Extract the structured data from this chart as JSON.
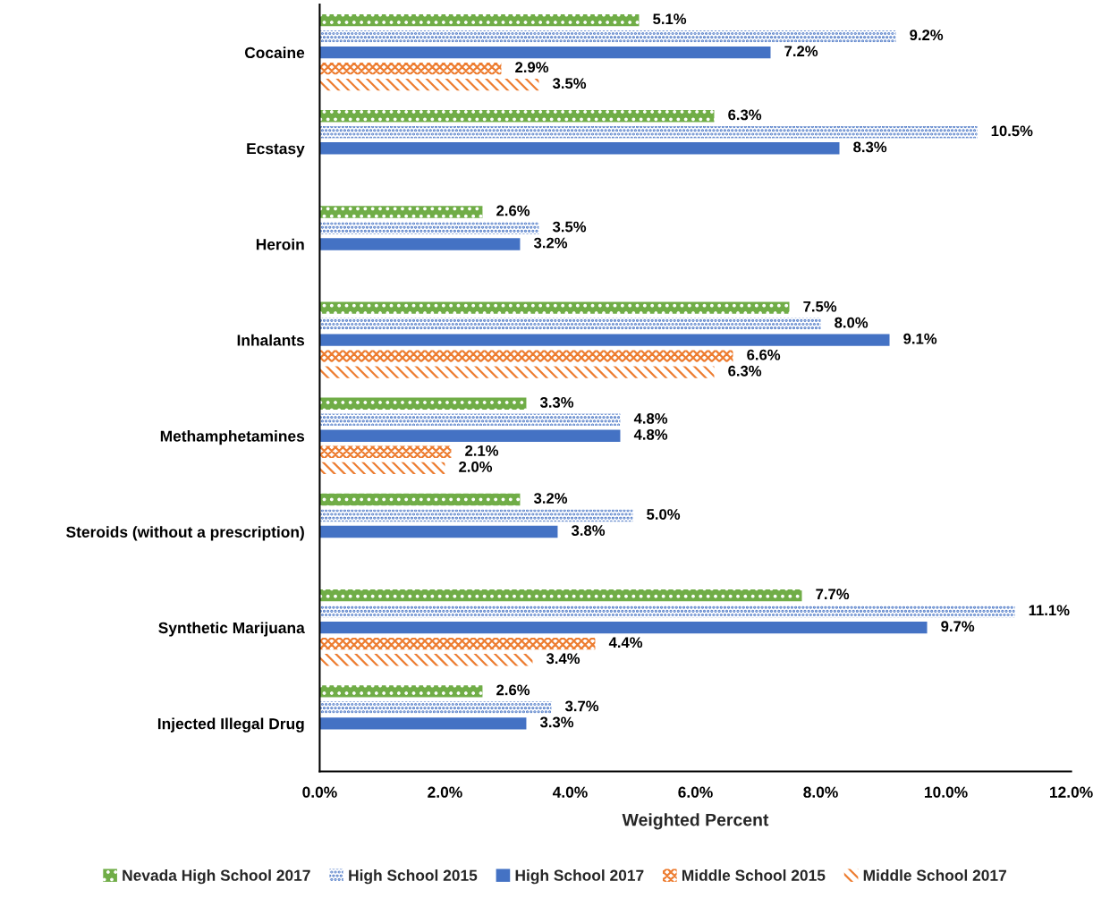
{
  "chart_data": {
    "type": "bar",
    "orientation": "horizontal",
    "xlabel": "Weighted Percent",
    "legend": "bottom",
    "grid": false,
    "categories": [
      "Cocaine",
      "Ecstasy",
      "Heroin",
      "Inhalants",
      "Methamphetamines",
      "Steroids (without a prescription)",
      "Synthetic Marijuana",
      "Injected Illegal Drug"
    ],
    "xlim": [
      0,
      12
    ],
    "xticks": [
      {
        "value": 0,
        "label": "0.0%"
      },
      {
        "value": 2,
        "label": "2.0%"
      },
      {
        "value": 4,
        "label": "4.0%"
      },
      {
        "value": 6,
        "label": "6.0%"
      },
      {
        "value": 8,
        "label": "8.0%"
      },
      {
        "value": 10,
        "label": "10.0%"
      },
      {
        "value": 12,
        "label": "12.0%"
      }
    ],
    "series": [
      {
        "name": "Nevada High School 2017",
        "color": "#70ad47",
        "values": [
          5.1,
          6.3,
          2.6,
          7.5,
          3.3,
          3.2,
          7.7,
          2.6
        ],
        "value_labels": [
          "5.1%",
          "6.3%",
          "2.6%",
          "7.5%",
          "3.3%",
          "3.2%",
          "7.7%",
          "2.6%"
        ]
      },
      {
        "name": "High School 2015",
        "color": "#4472c4",
        "values": [
          9.2,
          10.5,
          3.5,
          8.0,
          4.8,
          5.0,
          11.1,
          3.7
        ],
        "value_labels": [
          "9.2%",
          "10.5%",
          "3.5%",
          "8.0%",
          "4.8%",
          "5.0%",
          "11.1%",
          "3.7%"
        ]
      },
      {
        "name": "High School 2017",
        "color": "#4472c4",
        "values": [
          7.2,
          8.3,
          3.2,
          9.1,
          4.8,
          3.8,
          9.7,
          3.3
        ],
        "value_labels": [
          "7.2%",
          "8.3%",
          "3.2%",
          "9.1%",
          "4.8%",
          "3.8%",
          "9.7%",
          "3.3%"
        ]
      },
      {
        "name": "Middle School 2015",
        "color": "#ed7d31",
        "values": [
          2.9,
          null,
          null,
          6.6,
          2.1,
          null,
          4.4,
          null
        ],
        "value_labels": [
          "2.9%",
          null,
          null,
          "6.6%",
          "2.1%",
          null,
          "4.4%",
          null
        ]
      },
      {
        "name": "Middle School 2017",
        "color": "#ed7d31",
        "values": [
          3.5,
          null,
          null,
          6.3,
          2.0,
          null,
          3.4,
          null
        ],
        "value_labels": [
          "3.5%",
          null,
          null,
          "6.3%",
          "2.0%",
          null,
          "3.4%",
          null
        ]
      }
    ]
  }
}
